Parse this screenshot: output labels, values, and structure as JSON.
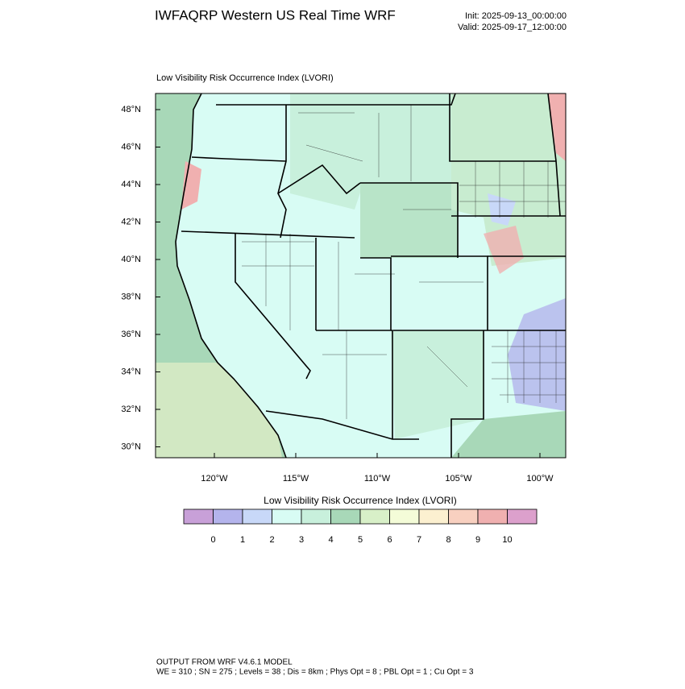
{
  "header": {
    "title": "IWFAQRP Western US Real Time WRF",
    "init": "Init: 2025-09-13_00:00:00",
    "valid": "Valid: 2025-09-17_12:00:00"
  },
  "map": {
    "title": "Low Visibility Risk Occurrence Index   (LVORI)",
    "lat_labels": [
      "48°N",
      "46°N",
      "44°N",
      "42°N",
      "40°N",
      "38°N",
      "36°N",
      "34°N",
      "32°N",
      "30°N"
    ],
    "lon_labels": [
      "120°W",
      "115°W",
      "110°W",
      "105°W",
      "100°W"
    ]
  },
  "colorbar": {
    "title": "Low Visibility Risk Occurrence Index  (LVORI)",
    "levels": [
      0,
      1,
      2,
      3,
      4,
      5,
      6,
      7,
      8,
      9,
      10
    ],
    "colors": [
      "#c8a0d8",
      "#b4b4ec",
      "#c8d8f8",
      "#d8fcf4",
      "#c8f0dc",
      "#a8d8b8",
      "#d8f0c8",
      "#f4fcd8",
      "#fcf0d0",
      "#f8d0c0",
      "#f0b0b0",
      "#dca0cc"
    ]
  },
  "footer": {
    "line1": "OUTPUT FROM WRF V4.6.1 MODEL",
    "line2": "WE = 310 ; SN = 275 ; Levels = 38 ; Dis = 8km ; Phys Opt = 8 ; PBL Opt = 1 ; Cu Opt = 3"
  }
}
